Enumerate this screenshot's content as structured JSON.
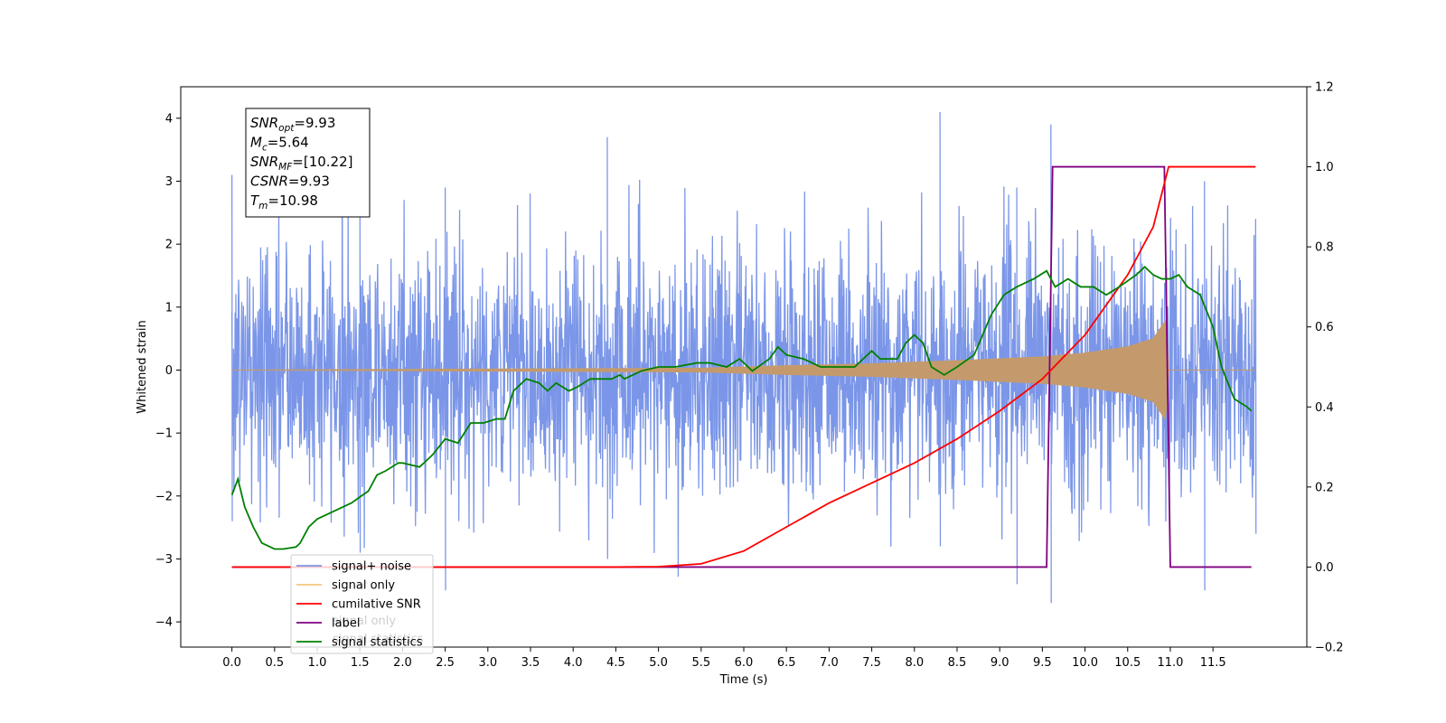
{
  "chart_data": {
    "type": "line",
    "title": "",
    "xlabel": "Time (s)",
    "ylabel": "Whitened strain",
    "y2label": "",
    "xlim": [
      -0.6,
      12.6
    ],
    "ylim": [
      -4.4,
      4.5
    ],
    "y2lim": [
      -0.2,
      1.2
    ],
    "x_ticks": [
      "0.0",
      "0.5",
      "1.0",
      "1.5",
      "2.0",
      "2.5",
      "3.0",
      "3.5",
      "4.0",
      "4.5",
      "5.0",
      "5.5",
      "6.0",
      "6.5",
      "7.0",
      "7.5",
      "8.0",
      "8.5",
      "9.0",
      "9.5",
      "10.0",
      "10.5",
      "11.0",
      "11.5"
    ],
    "y_ticks": [
      "−4",
      "−3",
      "−2",
      "−1",
      "0",
      "1",
      "2",
      "3",
      "4"
    ],
    "y2_ticks": [
      "−0.2",
      "0.0",
      "0.2",
      "0.4",
      "0.6",
      "0.8",
      "1.0",
      "1.2"
    ],
    "grid": false,
    "legend_position": "bottom-left",
    "annotation": {
      "lines": [
        {
          "sym": "SNR",
          "sub": "opt",
          "value": "=9.93"
        },
        {
          "sym": "M",
          "sub": "c",
          "value": "=5.64"
        },
        {
          "sym": "SNR",
          "sub": "MF",
          "value": "=[10.22]"
        },
        {
          "sym": "CSNR",
          "sub": "",
          "value": "=9.93"
        },
        {
          "sym": "T",
          "sub": "m",
          "value": "=10.98"
        }
      ]
    },
    "legend": [
      {
        "name": "signal+ noise",
        "color": "#7b96e8"
      },
      {
        "name": "signal only",
        "color": "#f5c77e"
      },
      {
        "name": "cumilative SNR",
        "color": "#ff0000"
      },
      {
        "name": "label",
        "color": "#800080"
      },
      {
        "name": "signal statistics",
        "color": "#008000"
      }
    ],
    "hidden_legend_remnants": [
      "signal only",
      "signal statistics"
    ],
    "series": [
      {
        "name": "signal+ noise",
        "axis": "left",
        "color": "#7b96e8",
        "x_range": [
          0.0,
          12.0
        ],
        "baseline_std": 1.0,
        "envelope_samples": [
          {
            "x": 0.0,
            "max": 3.1,
            "min": -2.4
          },
          {
            "x": 1.5,
            "max": 3.4,
            "min": -2.9
          },
          {
            "x": 2.5,
            "max": 2.9,
            "min": -3.5
          },
          {
            "x": 4.4,
            "max": 3.7,
            "min": -3.0
          },
          {
            "x": 8.3,
            "max": 4.1,
            "min": -2.8
          },
          {
            "x": 9.2,
            "max": 2.9,
            "min": -3.4
          },
          {
            "x": 9.6,
            "max": 3.9,
            "min": -3.7
          },
          {
            "x": 11.4,
            "max": 3.0,
            "min": -3.5
          },
          {
            "x": 12.0,
            "max": 2.4,
            "min": -2.6
          }
        ]
      },
      {
        "name": "signal only",
        "axis": "left",
        "color": "#c49a6c",
        "envelope": [
          {
            "x": 0.0,
            "a": 0.0
          },
          {
            "x": 5.5,
            "a": 0.03
          },
          {
            "x": 6.5,
            "a": 0.07
          },
          {
            "x": 7.5,
            "a": 0.1
          },
          {
            "x": 8.5,
            "a": 0.15
          },
          {
            "x": 9.5,
            "a": 0.21
          },
          {
            "x": 10.0,
            "a": 0.27
          },
          {
            "x": 10.5,
            "a": 0.37
          },
          {
            "x": 10.8,
            "a": 0.5
          },
          {
            "x": 10.95,
            "a": 0.8
          },
          {
            "x": 10.98,
            "a": 0.0
          },
          {
            "x": 12.0,
            "a": 0.0
          }
        ]
      },
      {
        "name": "cumilative SNR",
        "axis": "right",
        "color": "#ff0000",
        "x": [
          0,
          4.5,
          5.0,
          5.5,
          6.0,
          6.5,
          7.0,
          7.5,
          8.0,
          8.5,
          9.0,
          9.5,
          10.0,
          10.5,
          10.8,
          10.98,
          12.0
        ],
        "y": [
          0.0,
          0.0,
          0.001,
          0.008,
          0.04,
          0.1,
          0.16,
          0.21,
          0.26,
          0.32,
          0.39,
          0.47,
          0.58,
          0.73,
          0.85,
          1.0,
          1.0
        ]
      },
      {
        "name": "label",
        "axis": "right",
        "color": "#800080",
        "x": [
          0.0,
          9.55,
          9.62,
          10.93,
          11.0,
          11.95
        ],
        "y": [
          0.0,
          0.0,
          1.0,
          1.0,
          0.0,
          0.0
        ]
      },
      {
        "name": "signal statistics",
        "axis": "right",
        "color": "#008000",
        "x": [
          0.0,
          0.07,
          0.15,
          0.25,
          0.35,
          0.5,
          0.6,
          0.75,
          0.8,
          0.9,
          1.0,
          1.2,
          1.4,
          1.6,
          1.7,
          1.8,
          1.95,
          2.0,
          2.2,
          2.35,
          2.5,
          2.65,
          2.8,
          2.95,
          3.1,
          3.2,
          3.3,
          3.45,
          3.6,
          3.7,
          3.8,
          3.95,
          4.05,
          4.2,
          4.45,
          4.55,
          4.6,
          4.8,
          5.0,
          5.2,
          5.45,
          5.6,
          5.8,
          5.95,
          6.1,
          6.3,
          6.4,
          6.5,
          6.7,
          6.9,
          7.1,
          7.3,
          7.5,
          7.6,
          7.8,
          7.9,
          8.0,
          8.1,
          8.2,
          8.35,
          8.5,
          8.7,
          8.9,
          9.05,
          9.2,
          9.4,
          9.55,
          9.65,
          9.8,
          9.95,
          10.1,
          10.25,
          10.4,
          10.6,
          10.7,
          10.8,
          10.9,
          11.0,
          11.1,
          11.2,
          11.35,
          11.5,
          11.6,
          11.75,
          11.9,
          11.95
        ],
        "y": [
          0.18,
          0.22,
          0.15,
          0.1,
          0.06,
          0.045,
          0.045,
          0.05,
          0.06,
          0.1,
          0.12,
          0.14,
          0.16,
          0.19,
          0.23,
          0.24,
          0.26,
          0.26,
          0.25,
          0.28,
          0.32,
          0.31,
          0.36,
          0.36,
          0.37,
          0.37,
          0.44,
          0.47,
          0.46,
          0.44,
          0.46,
          0.44,
          0.45,
          0.47,
          0.47,
          0.48,
          0.47,
          0.49,
          0.5,
          0.5,
          0.51,
          0.51,
          0.5,
          0.52,
          0.49,
          0.52,
          0.55,
          0.53,
          0.52,
          0.5,
          0.5,
          0.5,
          0.54,
          0.52,
          0.52,
          0.56,
          0.58,
          0.56,
          0.5,
          0.48,
          0.5,
          0.53,
          0.63,
          0.68,
          0.7,
          0.72,
          0.74,
          0.7,
          0.72,
          0.7,
          0.7,
          0.68,
          0.7,
          0.73,
          0.75,
          0.73,
          0.72,
          0.72,
          0.73,
          0.7,
          0.68,
          0.6,
          0.5,
          0.42,
          0.4,
          0.39
        ]
      }
    ]
  }
}
